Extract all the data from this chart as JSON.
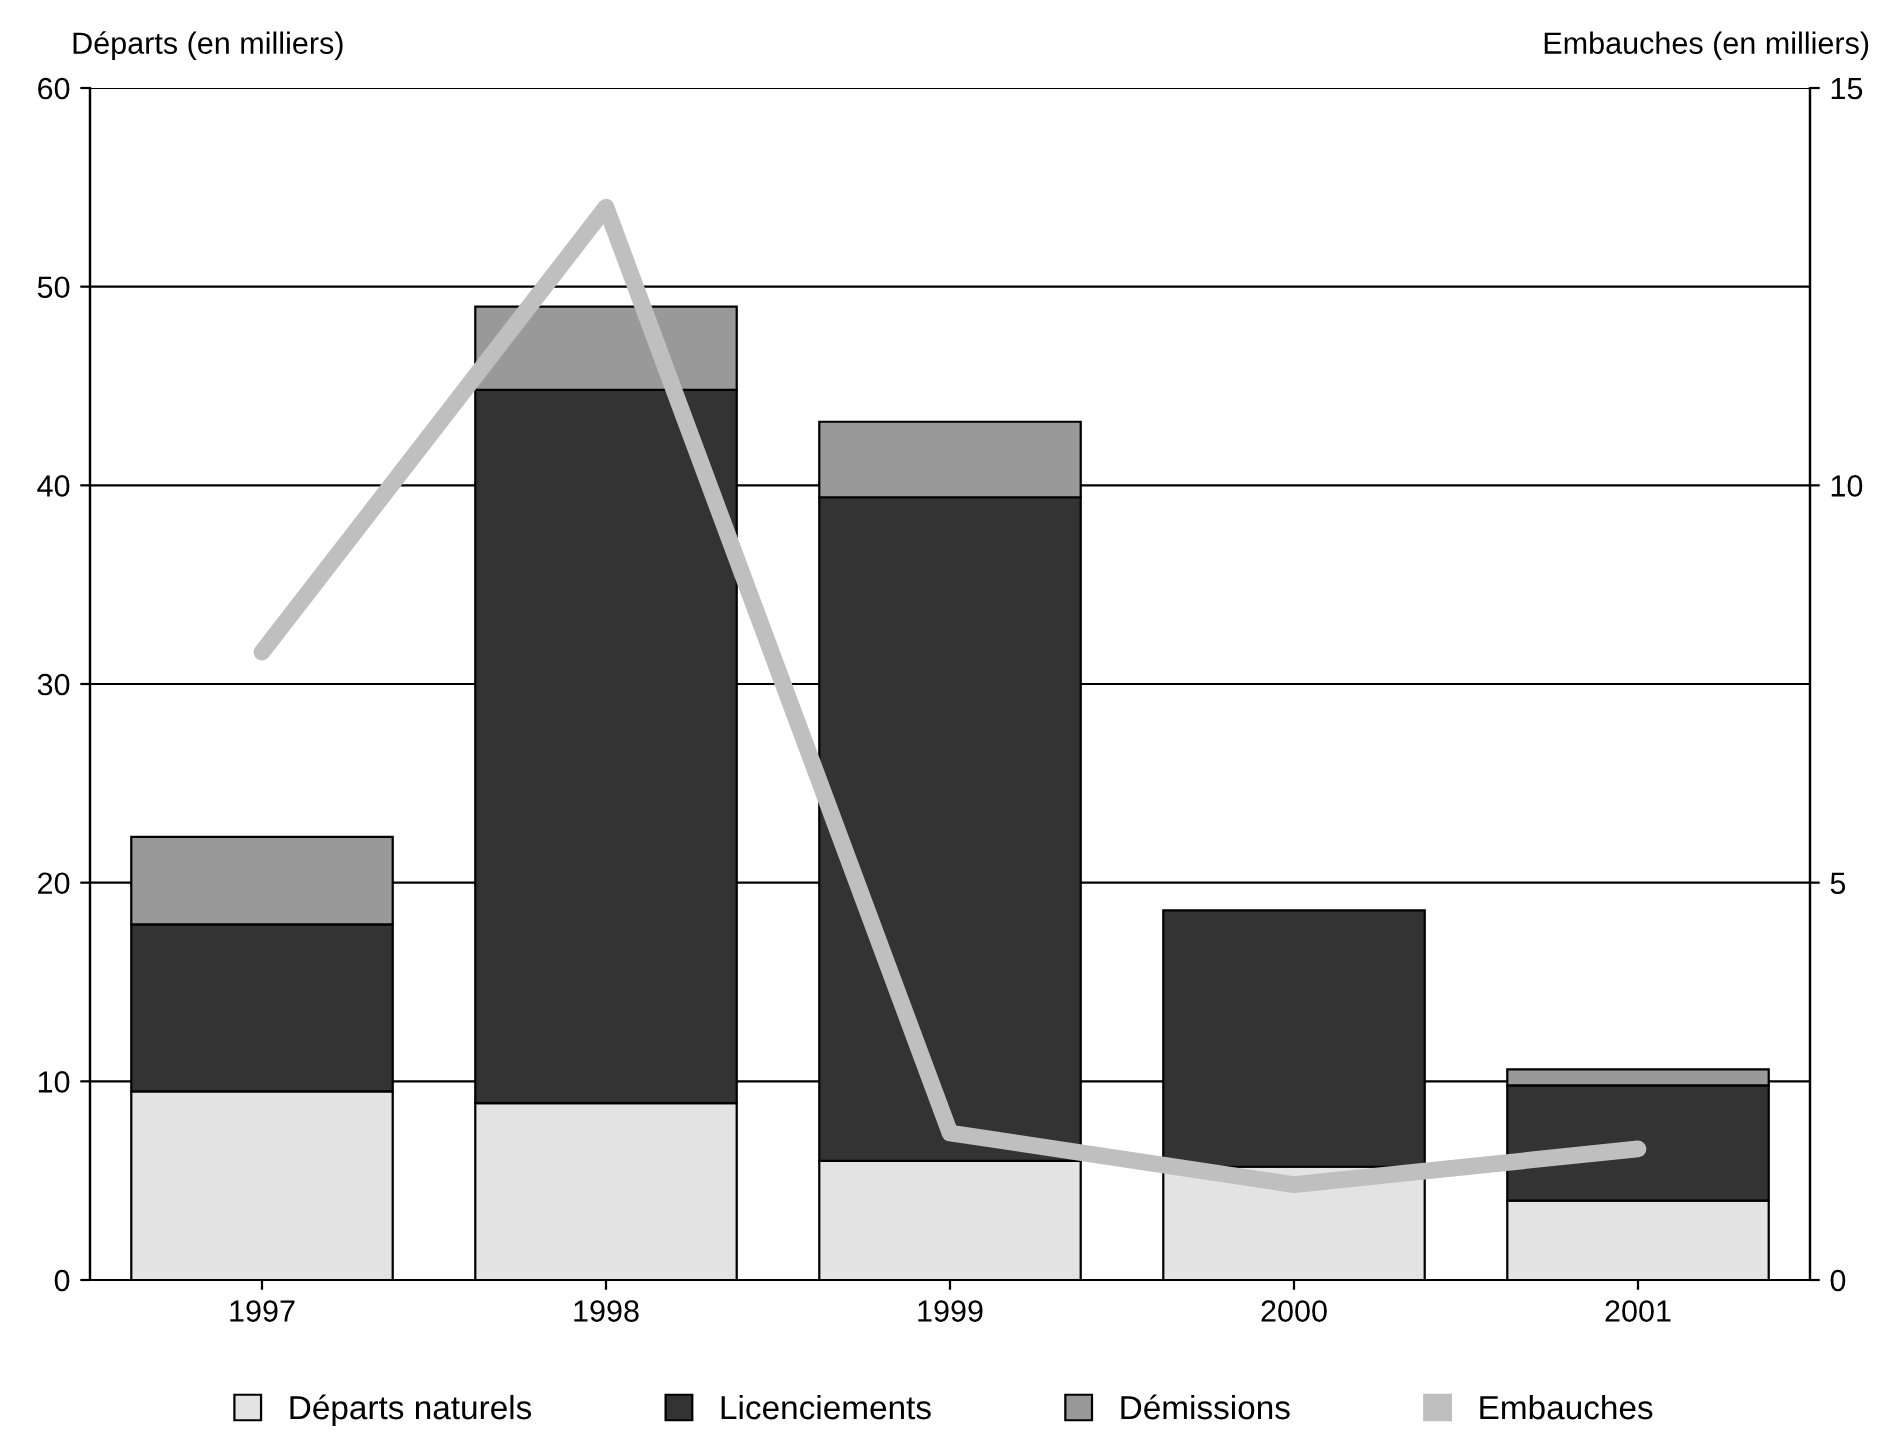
{
  "chart_data": {
    "type": "bar",
    "stacked": true,
    "ylabel": "Départs (en milliers)",
    "y2label": "Embauches (en milliers)",
    "categories": [
      "1997",
      "1998",
      "1999",
      "2000",
      "2001"
    ],
    "series": [
      {
        "name": "Départs naturels",
        "color": "#e3e3e3",
        "values": [
          9.5,
          8.9,
          6.0,
          5.7,
          4.0
        ]
      },
      {
        "name": "Licenciements",
        "color": "#333333",
        "values": [
          8.4,
          35.9,
          33.4,
          12.9,
          5.8
        ]
      },
      {
        "name": "Démissions",
        "color": "#999999",
        "values": [
          4.4,
          4.2,
          3.8,
          null,
          0.8
        ]
      },
      {
        "name": "Embauches",
        "type": "line",
        "axis": "y2",
        "color": "#bfbfbf",
        "values": [
          7.9,
          13.5,
          1.85,
          1.2,
          1.65
        ]
      }
    ],
    "ylim": [
      0,
      60
    ],
    "yticks": [
      0,
      10,
      20,
      30,
      40,
      50,
      60
    ],
    "y2lim": [
      0,
      15
    ],
    "y2ticks": [
      0,
      5,
      10,
      15
    ],
    "grid": "y",
    "legend": "bottom"
  }
}
